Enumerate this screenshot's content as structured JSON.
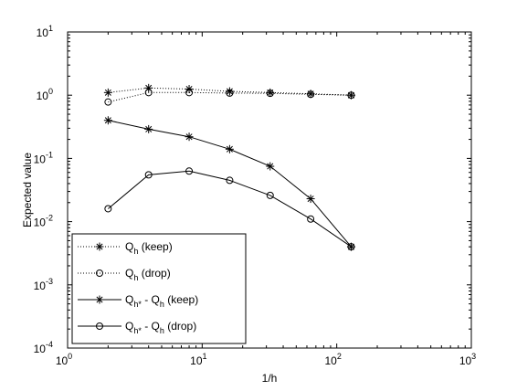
{
  "chart_data": {
    "type": "line",
    "xscale": "log",
    "yscale": "log",
    "xlim": [
      1,
      1000
    ],
    "ylim": [
      0.0001,
      10
    ],
    "xlabel": "1/h",
    "ylabel": "Expected value",
    "grid": false,
    "legend_position": "bottom-left",
    "x": [
      2,
      4,
      8,
      16,
      32,
      64,
      128
    ],
    "series": [
      {
        "label_main": "Q",
        "label_sub": "h",
        "label_sub_extra": "",
        "label_tail": " (keep)",
        "line": "dotted",
        "marker": "star",
        "values": [
          1.1,
          1.3,
          1.25,
          1.15,
          1.1,
          1.05,
          1.0
        ]
      },
      {
        "label_main": "Q",
        "label_sub": "h",
        "label_sub_extra": "",
        "label_tail": " (drop)",
        "line": "dotted",
        "marker": "circle",
        "values": [
          0.78,
          1.1,
          1.1,
          1.08,
          1.07,
          1.03,
          1.0
        ]
      },
      {
        "label_main": "Q",
        "label_sub": "h*",
        "label_sub_extra": " - Q",
        "label_sub2": "h",
        "label_tail": " (keep)",
        "line": "solid",
        "marker": "star",
        "values": [
          0.4,
          0.29,
          0.22,
          0.14,
          0.075,
          0.023,
          0.004
        ]
      },
      {
        "label_main": "Q",
        "label_sub": "h*",
        "label_sub_extra": " - Q",
        "label_sub2": "h",
        "label_tail": " (drop)",
        "line": "solid",
        "marker": "circle",
        "values": [
          0.016,
          0.055,
          0.063,
          0.045,
          0.026,
          0.011,
          0.004
        ]
      }
    ],
    "x_ticks": [
      {
        "base": "10",
        "exp": "0",
        "value": 1
      },
      {
        "base": "10",
        "exp": "1",
        "value": 10
      },
      {
        "base": "10",
        "exp": "2",
        "value": 100
      },
      {
        "base": "10",
        "exp": "3",
        "value": 1000
      }
    ],
    "y_ticks": [
      {
        "base": "10",
        "exp": "-4",
        "value": 0.0001
      },
      {
        "base": "10",
        "exp": "-3",
        "value": 0.001
      },
      {
        "base": "10",
        "exp": "-2",
        "value": 0.01
      },
      {
        "base": "10",
        "exp": "-1",
        "value": 0.1
      },
      {
        "base": "10",
        "exp": "0",
        "value": 1
      },
      {
        "base": "10",
        "exp": "1",
        "value": 10
      }
    ],
    "colors": {
      "line": "#000000",
      "background": "#ffffff"
    }
  }
}
